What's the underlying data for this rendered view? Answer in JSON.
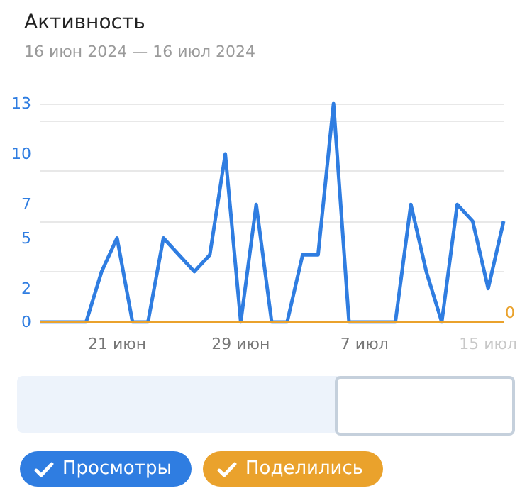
{
  "chart_data": {
    "type": "line",
    "title": "Активность",
    "subtitle": "16 июн 2024 — 16 июл 2024",
    "categories": [
      null,
      null,
      null,
      null,
      null,
      "21 июн",
      null,
      null,
      null,
      null,
      null,
      null,
      null,
      "29 июн",
      null,
      null,
      null,
      null,
      null,
      null,
      null,
      "7 июл",
      null,
      null,
      null,
      null,
      null,
      null,
      null,
      "15 июл",
      null
    ],
    "series": [
      {
        "name": "Просмотры",
        "color": "#2f7de1",
        "values": [
          0,
          0,
          0,
          0,
          3,
          5,
          0,
          0,
          5,
          4,
          3,
          4,
          10,
          0,
          7,
          0,
          0,
          4,
          4,
          13,
          0,
          0,
          0,
          0,
          7,
          3,
          0,
          7,
          6,
          2,
          6
        ]
      },
      {
        "name": "Поделились",
        "color": "#eaa22c",
        "values": [
          0,
          0,
          0,
          0,
          0,
          0,
          0,
          0,
          0,
          0,
          0,
          0,
          0,
          0,
          0,
          0,
          0,
          0,
          0,
          0,
          0,
          0,
          0,
          0,
          0,
          0,
          0,
          0,
          0,
          0,
          0
        ]
      }
    ],
    "ylim": [
      0,
      13
    ],
    "yticks": [
      0,
      2,
      5,
      7,
      10,
      13
    ],
    "annotations": [
      "0"
    ],
    "grid": "y",
    "legend": "bottom",
    "marker": "none",
    "line_style": "solid"
  }
}
